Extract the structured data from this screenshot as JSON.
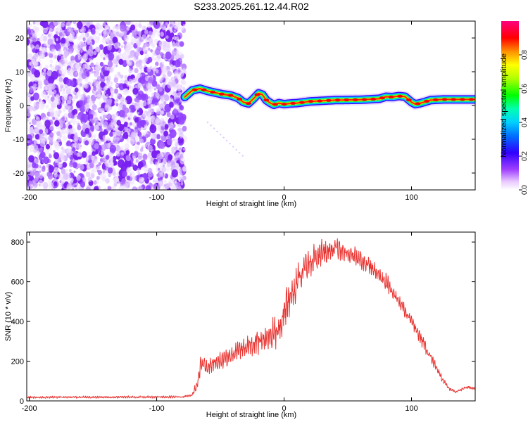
{
  "title": "S233.2025.261.12.44.R02",
  "chart_data": [
    {
      "type": "heatmap",
      "id": "spectrogram",
      "xlabel": "Height of straight line (km)",
      "ylabel": "Frequency (Hz)",
      "xlim": [
        -202,
        150
      ],
      "ylim": [
        -25,
        25
      ],
      "xticks": [
        -200,
        -100,
        0,
        100
      ],
      "yticks": [
        -20,
        -10,
        0,
        10,
        20
      ],
      "noise_region_x": [
        -202,
        -78
      ],
      "ridge": {
        "x": [
          -78,
          -72,
          -66,
          -60,
          -54,
          -48,
          -42,
          -36,
          -32,
          -28,
          -24,
          -20,
          -17,
          -14,
          -11,
          -8,
          -4,
          0,
          5,
          10,
          20,
          40,
          60,
          75,
          80,
          85,
          90,
          95,
          100,
          103,
          106,
          110,
          115,
          125,
          150
        ],
        "freq": [
          2.5,
          4.5,
          5.0,
          4.3,
          3.8,
          3.3,
          3.0,
          2.2,
          1.0,
          0.6,
          2.0,
          3.6,
          3.2,
          1.6,
          0.8,
          0.2,
          0.7,
          0.4,
          0.6,
          0.7,
          1.2,
          1.6,
          1.7,
          2.0,
          2.6,
          2.5,
          2.8,
          2.6,
          1.0,
          0.4,
          0.6,
          1.0,
          1.6,
          1.8,
          1.8
        ]
      },
      "colorbar": {
        "label": "Normalized spectral amplitude",
        "range": [
          0,
          1
        ],
        "ticks": [
          0.0,
          0.2,
          0.4,
          0.6,
          0.8
        ]
      }
    },
    {
      "type": "line",
      "id": "snr",
      "xlabel": "Height of straight line (km)",
      "ylabel": "SNR (10 * v/v)",
      "xlim": [
        -202,
        150
      ],
      "ylim": [
        0,
        850
      ],
      "xticks": [
        -200,
        -100,
        0,
        100
      ],
      "yticks": [
        0,
        200,
        400,
        600,
        800
      ],
      "color": "#e8322f",
      "envelope": {
        "x": [
          -202,
          -80,
          -72,
          -68,
          -65,
          -60,
          -50,
          -40,
          -30,
          -20,
          -10,
          -5,
          0,
          5,
          10,
          18,
          25,
          30,
          35,
          40,
          45,
          50,
          55,
          60,
          70,
          80,
          90,
          100,
          110,
          120,
          125,
          130,
          135,
          140,
          145,
          150
        ],
        "y": [
          18,
          20,
          30,
          90,
          190,
          170,
          200,
          240,
          270,
          300,
          330,
          360,
          450,
          520,
          600,
          690,
          720,
          750,
          760,
          775,
          760,
          745,
          730,
          710,
          660,
          600,
          500,
          400,
          280,
          160,
          100,
          60,
          45,
          60,
          70,
          62
        ],
        "amp": [
          6,
          6,
          10,
          40,
          60,
          40,
          45,
          50,
          55,
          65,
          80,
          100,
          110,
          100,
          90,
          80,
          75,
          65,
          60,
          60,
          55,
          50,
          50,
          50,
          45,
          45,
          40,
          40,
          35,
          25,
          15,
          10,
          6,
          8,
          10,
          8
        ]
      }
    }
  ]
}
